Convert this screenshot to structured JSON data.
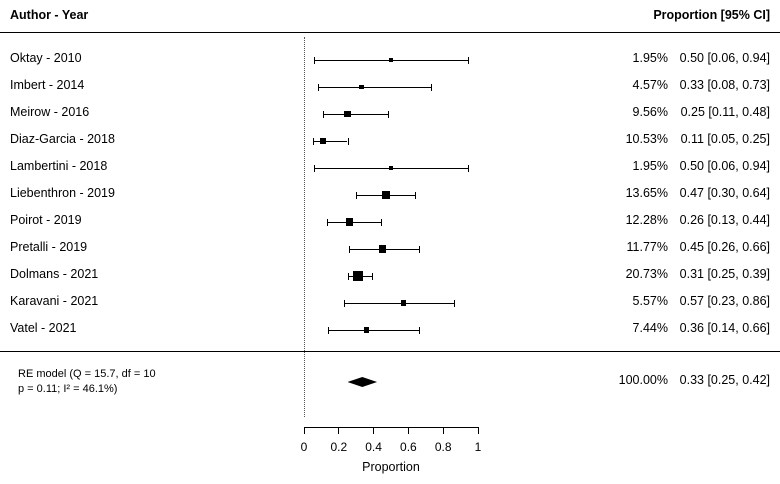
{
  "header": {
    "left": "Author - Year",
    "right": "Proportion [95% CI]"
  },
  "axis": {
    "min": 0,
    "max": 1,
    "ticks": [
      0,
      0.2,
      0.4,
      0.6,
      0.8,
      1
    ],
    "tick_labels": [
      "0",
      "0.2",
      "0.4",
      "0.6",
      "0.8",
      "1"
    ],
    "label": "Proportion",
    "ref_line": 0
  },
  "summary": {
    "label_line1": "RE model (Q = 15.7, df = 10",
    "label_line2": "p = 0.11; I² = 46.1%)",
    "weight_display": "100.00%",
    "estimate": 0.33,
    "ci_low": 0.25,
    "ci_high": 0.42,
    "display": "0.33 [0.25, 0.42]"
  },
  "chart_data": {
    "type": "forest",
    "title": "",
    "x_range": [
      0,
      1
    ],
    "studies": [
      {
        "label": "Oktay - 2010",
        "weight": 1.95,
        "weight_display": "1.95%",
        "estimate": 0.5,
        "ci_low": 0.06,
        "ci_high": 0.94,
        "display": "0.50 [0.06, 0.94]"
      },
      {
        "label": "Imbert - 2014",
        "weight": 4.57,
        "weight_display": "4.57%",
        "estimate": 0.33,
        "ci_low": 0.08,
        "ci_high": 0.73,
        "display": "0.33 [0.08, 0.73]"
      },
      {
        "label": "Meirow - 2016",
        "weight": 9.56,
        "weight_display": "9.56%",
        "estimate": 0.25,
        "ci_low": 0.11,
        "ci_high": 0.48,
        "display": "0.25 [0.11, 0.48]"
      },
      {
        "label": "Diaz-Garcia - 2018",
        "weight": 10.53,
        "weight_display": "10.53%",
        "estimate": 0.11,
        "ci_low": 0.05,
        "ci_high": 0.25,
        "display": "0.11 [0.05, 0.25]"
      },
      {
        "label": "Lambertini - 2018",
        "weight": 1.95,
        "weight_display": "1.95%",
        "estimate": 0.5,
        "ci_low": 0.06,
        "ci_high": 0.94,
        "display": "0.50 [0.06, 0.94]"
      },
      {
        "label": "Liebenthron - 2019",
        "weight": 13.65,
        "weight_display": "13.65%",
        "estimate": 0.47,
        "ci_low": 0.3,
        "ci_high": 0.64,
        "display": "0.47 [0.30, 0.64]"
      },
      {
        "label": "Poirot - 2019",
        "weight": 12.28,
        "weight_display": "12.28%",
        "estimate": 0.26,
        "ci_low": 0.13,
        "ci_high": 0.44,
        "display": "0.26 [0.13, 0.44]"
      },
      {
        "label": "Pretalli - 2019",
        "weight": 11.77,
        "weight_display": "11.77%",
        "estimate": 0.45,
        "ci_low": 0.26,
        "ci_high": 0.66,
        "display": "0.45 [0.26, 0.66]"
      },
      {
        "label": "Dolmans - 2021",
        "weight": 20.73,
        "weight_display": "20.73%",
        "estimate": 0.31,
        "ci_low": 0.25,
        "ci_high": 0.39,
        "display": "0.31 [0.25, 0.39]"
      },
      {
        "label": "Karavani - 2021",
        "weight": 5.57,
        "weight_display": "5.57%",
        "estimate": 0.57,
        "ci_low": 0.23,
        "ci_high": 0.86,
        "display": "0.57 [0.23, 0.86]"
      },
      {
        "label": "Vatel - 2021",
        "weight": 7.44,
        "weight_display": "7.44%",
        "estimate": 0.36,
        "ci_low": 0.14,
        "ci_high": 0.66,
        "display": "0.36 [0.14, 0.66]"
      }
    ]
  },
  "colors": {
    "foreground": "#000000",
    "background": "#ffffff",
    "ref_line": "#555555"
  }
}
